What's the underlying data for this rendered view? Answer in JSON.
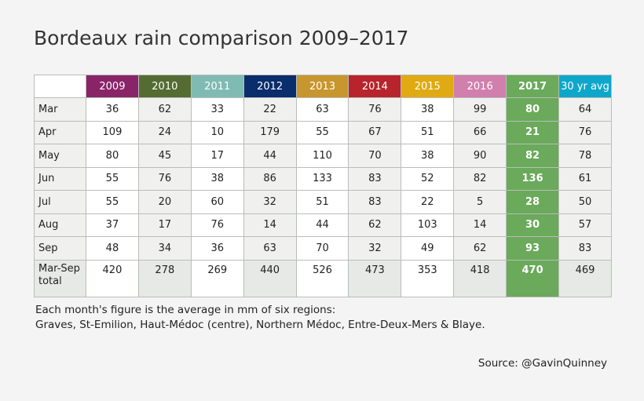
{
  "chart_data": {
    "type": "table",
    "title": "Bordeaux rain comparison 2009–2017",
    "columns": [
      {
        "label": "2009",
        "color": "#8a2469"
      },
      {
        "label": "2010",
        "color": "#546c32"
      },
      {
        "label": "2011",
        "color": "#7fbab3"
      },
      {
        "label": "2012",
        "color": "#0a2d6c"
      },
      {
        "label": "2013",
        "color": "#c8962e"
      },
      {
        "label": "2014",
        "color": "#b8242c"
      },
      {
        "label": "2015",
        "color": "#dfaa12"
      },
      {
        "label": "2016",
        "color": "#d17fad"
      },
      {
        "label": "2017",
        "color": "#6aaa5a",
        "highlight": true
      },
      {
        "label": "30 yr avg",
        "color": "#0ea7cb"
      }
    ],
    "rows": [
      {
        "label": "Mar",
        "values": [
          36,
          62,
          33,
          22,
          63,
          76,
          38,
          99,
          80,
          64
        ]
      },
      {
        "label": "Apr",
        "values": [
          109,
          24,
          10,
          179,
          55,
          67,
          51,
          66,
          21,
          76
        ]
      },
      {
        "label": "May",
        "values": [
          80,
          45,
          17,
          44,
          110,
          70,
          38,
          90,
          82,
          78
        ]
      },
      {
        "label": "Jun",
        "values": [
          55,
          76,
          38,
          86,
          133,
          83,
          52,
          82,
          136,
          61
        ]
      },
      {
        "label": "Jul",
        "values": [
          55,
          20,
          60,
          32,
          51,
          83,
          22,
          5,
          28,
          50
        ]
      },
      {
        "label": "Aug",
        "values": [
          37,
          17,
          76,
          14,
          44,
          62,
          103,
          14,
          30,
          57
        ]
      },
      {
        "label": "Sep",
        "values": [
          48,
          34,
          36,
          63,
          70,
          32,
          49,
          62,
          93,
          83
        ]
      },
      {
        "label": "Mar-Sep total",
        "values": [
          420,
          278,
          269,
          440,
          526,
          473,
          353,
          418,
          470,
          469
        ]
      }
    ]
  },
  "note": {
    "line1": "Each month's figure is the average in mm of six regions:",
    "line2": "Graves, St-Emilion, Haut-Médoc (centre), Northern Médoc, Entre-Deux-Mers & Blaye."
  },
  "source": "Source: @GavinQuinney"
}
